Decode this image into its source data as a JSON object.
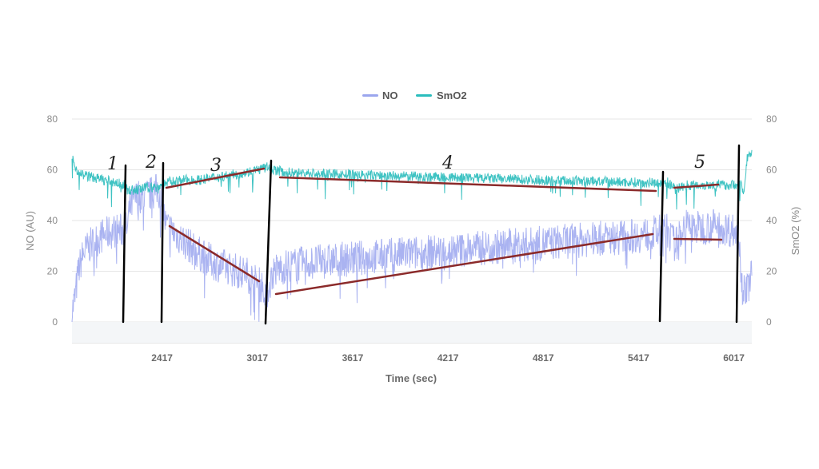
{
  "chart_data": {
    "type": "line",
    "xlabel": "Time (sec)",
    "ylabel_left": "NO (AU)",
    "ylabel_right": "SmO2 (%)",
    "x_ticks": [
      2417,
      3017,
      3617,
      4217,
      4817,
      5417,
      6017
    ],
    "xlim": [
      1850,
      6130
    ],
    "y_ticks_left": [
      0,
      20,
      40,
      60,
      80
    ],
    "y_ticks_right": [
      0,
      20,
      40,
      60,
      80
    ],
    "ylim": [
      0,
      80
    ],
    "grid": true,
    "legend_position": "top-center",
    "series": [
      {
        "name": "NO",
        "color": "#9ba6ee",
        "x": [
          1850,
          1870,
          1890,
          1920,
          1960,
          2000,
          2040,
          2080,
          2120,
          2160,
          2200,
          2210,
          2240,
          2270,
          2300,
          2330,
          2360,
          2390,
          2417,
          2440,
          2480,
          2550,
          2650,
          2750,
          2850,
          2950,
          3000,
          3050,
          3080,
          3120,
          3200,
          3300,
          3450,
          3617,
          3800,
          4000,
          4217,
          4400,
          4600,
          4817,
          5000,
          5200,
          5417,
          5600,
          5650,
          5700,
          5800,
          5900,
          6017,
          6050,
          6070,
          6100,
          6130
        ],
        "values": [
          4,
          10,
          20,
          27,
          30,
          32,
          34,
          35,
          36,
          36,
          37,
          44,
          48,
          50,
          49,
          50,
          51,
          52,
          48,
          38,
          36,
          32,
          27,
          23,
          21,
          19,
          16,
          14,
          12,
          20,
          22,
          23,
          24,
          25,
          26,
          27,
          28,
          29,
          30,
          31,
          32,
          33,
          34,
          36,
          30,
          38,
          37,
          38,
          36,
          32,
          14,
          12,
          20
        ]
      },
      {
        "name": "SmO2",
        "color": "#2bbdbd",
        "x": [
          1850,
          1860,
          1880,
          1920,
          1980,
          2050,
          2120,
          2180,
          2200,
          2260,
          2320,
          2380,
          2417,
          2450,
          2550,
          2650,
          2750,
          2850,
          2950,
          3017,
          3080,
          3120,
          3200,
          3400,
          3617,
          3900,
          4217,
          4500,
          4817,
          5100,
          5417,
          5600,
          5650,
          5700,
          5800,
          5900,
          6017,
          6060,
          6080,
          6100,
          6130
        ],
        "values": [
          65,
          63,
          60,
          58,
          57,
          56,
          55,
          54,
          52,
          52,
          53,
          53,
          54,
          55,
          56,
          56,
          57,
          58,
          59,
          60,
          61,
          60,
          59,
          58.5,
          58,
          57.5,
          57,
          56.5,
          56,
          55.5,
          55,
          55,
          52,
          54,
          54,
          54,
          54,
          55,
          50,
          65,
          66
        ]
      }
    ],
    "annotations": {
      "phase_labels": [
        "1",
        "2",
        "3",
        "4",
        "5"
      ],
      "annotation_color": "#000000",
      "trend_color": "#8b2a2a"
    }
  }
}
